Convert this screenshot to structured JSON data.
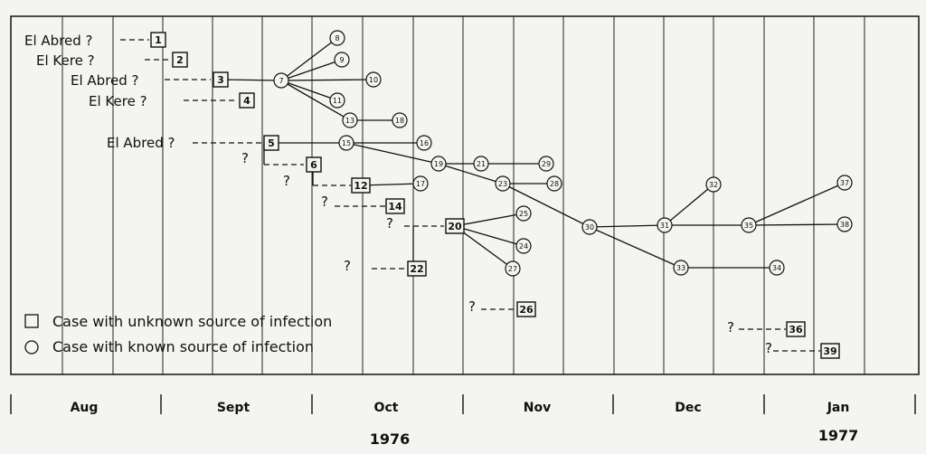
{
  "diagram": {
    "legend": {
      "square_label": "Case with unknown source of infection",
      "circle_label": "Case with known source of infection"
    },
    "months": [
      "Aug",
      "Sept",
      "Oct",
      "Nov",
      "Dec",
      "Jan"
    ],
    "years": [
      "1976",
      "1977"
    ],
    "source_labels": [
      "El Abred ?",
      "El Kere ?",
      "El Abred ?",
      "El Kere ?",
      "El Abred ?"
    ],
    "question_mark": "?",
    "unknown_cases": [
      "1",
      "2",
      "3",
      "4",
      "5",
      "6",
      "12",
      "14",
      "20",
      "22",
      "26",
      "36",
      "39"
    ],
    "known_cases": [
      "7",
      "8",
      "9",
      "10",
      "11",
      "13",
      "18",
      "15",
      "16",
      "19",
      "21",
      "29",
      "23",
      "28",
      "17",
      "25",
      "24",
      "27",
      "30",
      "31",
      "32",
      "33",
      "34",
      "35",
      "37",
      "38"
    ]
  }
}
